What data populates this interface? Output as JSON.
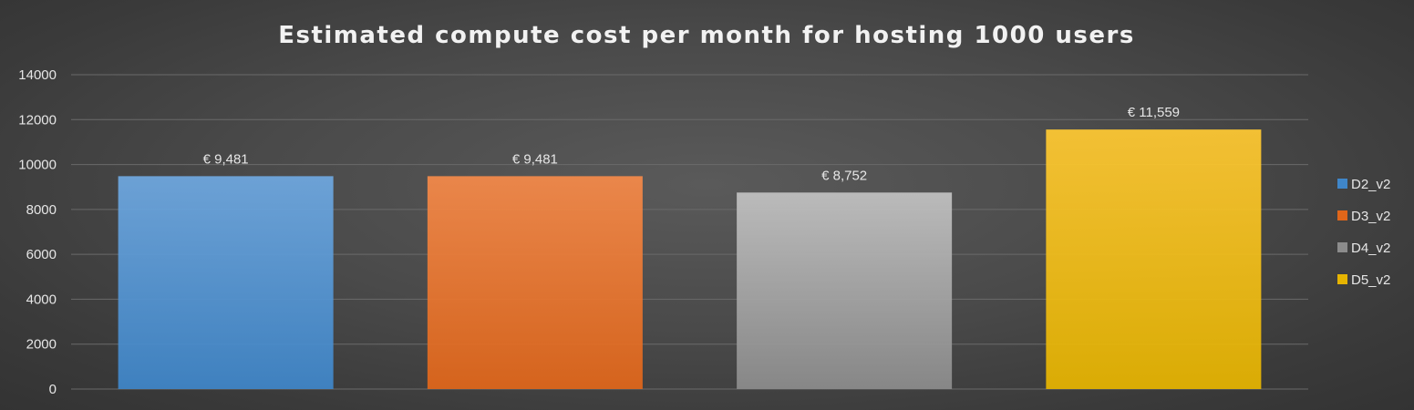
{
  "colors": {
    "background": "#454545",
    "grid": "#6a6a6a",
    "text": "#e6e6e6"
  },
  "chart_data": {
    "type": "bar",
    "title": "Estimated compute cost per month for hosting 1000 users",
    "xlabel": "",
    "ylabel": "",
    "ylim": [
      0,
      14000
    ],
    "yticks": [
      0,
      2000,
      4000,
      6000,
      8000,
      10000,
      12000,
      14000
    ],
    "grid": true,
    "legend_position": "right",
    "series": [
      {
        "name": "D2_v2",
        "value": 9481,
        "label": "€ 9,481",
        "color_top": "#6fa8e0",
        "color_bottom": "#3f86c9"
      },
      {
        "name": "D3_v2",
        "value": 9481,
        "label": "€ 9,481",
        "color_top": "#f58a4a",
        "color_bottom": "#e0661a"
      },
      {
        "name": "D4_v2",
        "value": 8752,
        "label": "€ 8,752",
        "color_top": "#c2c2c2",
        "color_bottom": "#8c8c8c"
      },
      {
        "name": "D5_v2",
        "value": 11559,
        "label": "€ 11,559",
        "color_top": "#ffc933",
        "color_bottom": "#e6b400"
      }
    ]
  }
}
